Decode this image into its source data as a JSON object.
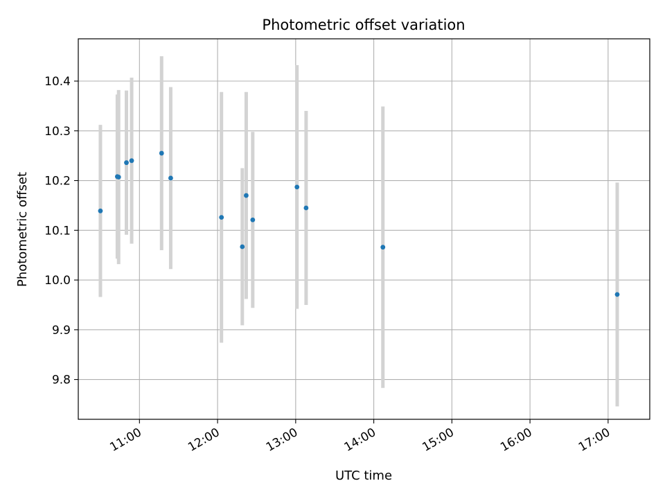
{
  "chart_data": {
    "type": "scatter",
    "title": "Photometric offset variation",
    "xlabel": "UTC time",
    "ylabel": "Photometric offset",
    "x_ticks": [
      "11:00",
      "12:00",
      "13:00",
      "14:00",
      "15:00",
      "16:00",
      "17:00"
    ],
    "xlim": [
      "10:13",
      "17:32"
    ],
    "y_ticks": [
      "9.8",
      "9.9",
      "10.0",
      "10.1",
      "10.2",
      "10.3",
      "10.4"
    ],
    "ylim": [
      9.72,
      10.485
    ],
    "grid": true,
    "marker_color": "#1f77b4",
    "errorbar_color": "#d3d3d3",
    "points": [
      {
        "x": "10:30",
        "y": 10.139,
        "err": 0.173
      },
      {
        "x": "10:43",
        "y": 10.208,
        "err": 0.165
      },
      {
        "x": "10:44",
        "y": 10.207,
        "err": 0.175
      },
      {
        "x": "10:50",
        "y": 10.236,
        "err": 0.145
      },
      {
        "x": "10:54",
        "y": 10.24,
        "err": 0.167
      },
      {
        "x": "11:17",
        "y": 10.255,
        "err": 0.195
      },
      {
        "x": "11:24",
        "y": 10.205,
        "err": 0.183
      },
      {
        "x": "12:03",
        "y": 10.126,
        "err": 0.252
      },
      {
        "x": "12:19",
        "y": 10.067,
        "err": 0.158
      },
      {
        "x": "12:22",
        "y": 10.17,
        "err": 0.208
      },
      {
        "x": "12:27",
        "y": 10.121,
        "err": 0.177
      },
      {
        "x": "13:01",
        "y": 10.187,
        "err": 0.245
      },
      {
        "x": "13:08",
        "y": 10.145,
        "err": 0.195
      },
      {
        "x": "14:07",
        "y": 10.066,
        "err": 0.283
      },
      {
        "x": "17:07",
        "y": 9.971,
        "err": 0.225
      }
    ]
  }
}
